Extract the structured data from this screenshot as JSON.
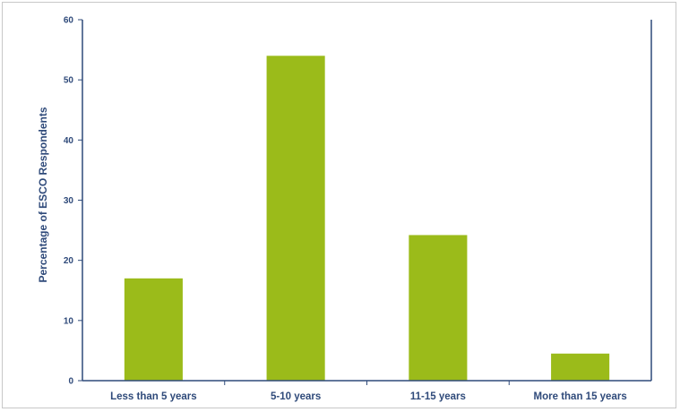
{
  "chart_data": {
    "type": "bar",
    "title": "",
    "xlabel": "",
    "ylabel": "Percentage of ESCO Respondents",
    "categories": [
      "Less than 5 years",
      "5-10 years",
      "11-15 years",
      "More than 15 years"
    ],
    "values": [
      17,
      54,
      24.2,
      4.5
    ],
    "ylim": [
      0,
      60
    ],
    "yticks": [
      0,
      10,
      20,
      30,
      40,
      50,
      60
    ],
    "grid": false,
    "legend": "none",
    "bar_color": "#9bbb1a",
    "axis_color": "#2f4a7a"
  }
}
